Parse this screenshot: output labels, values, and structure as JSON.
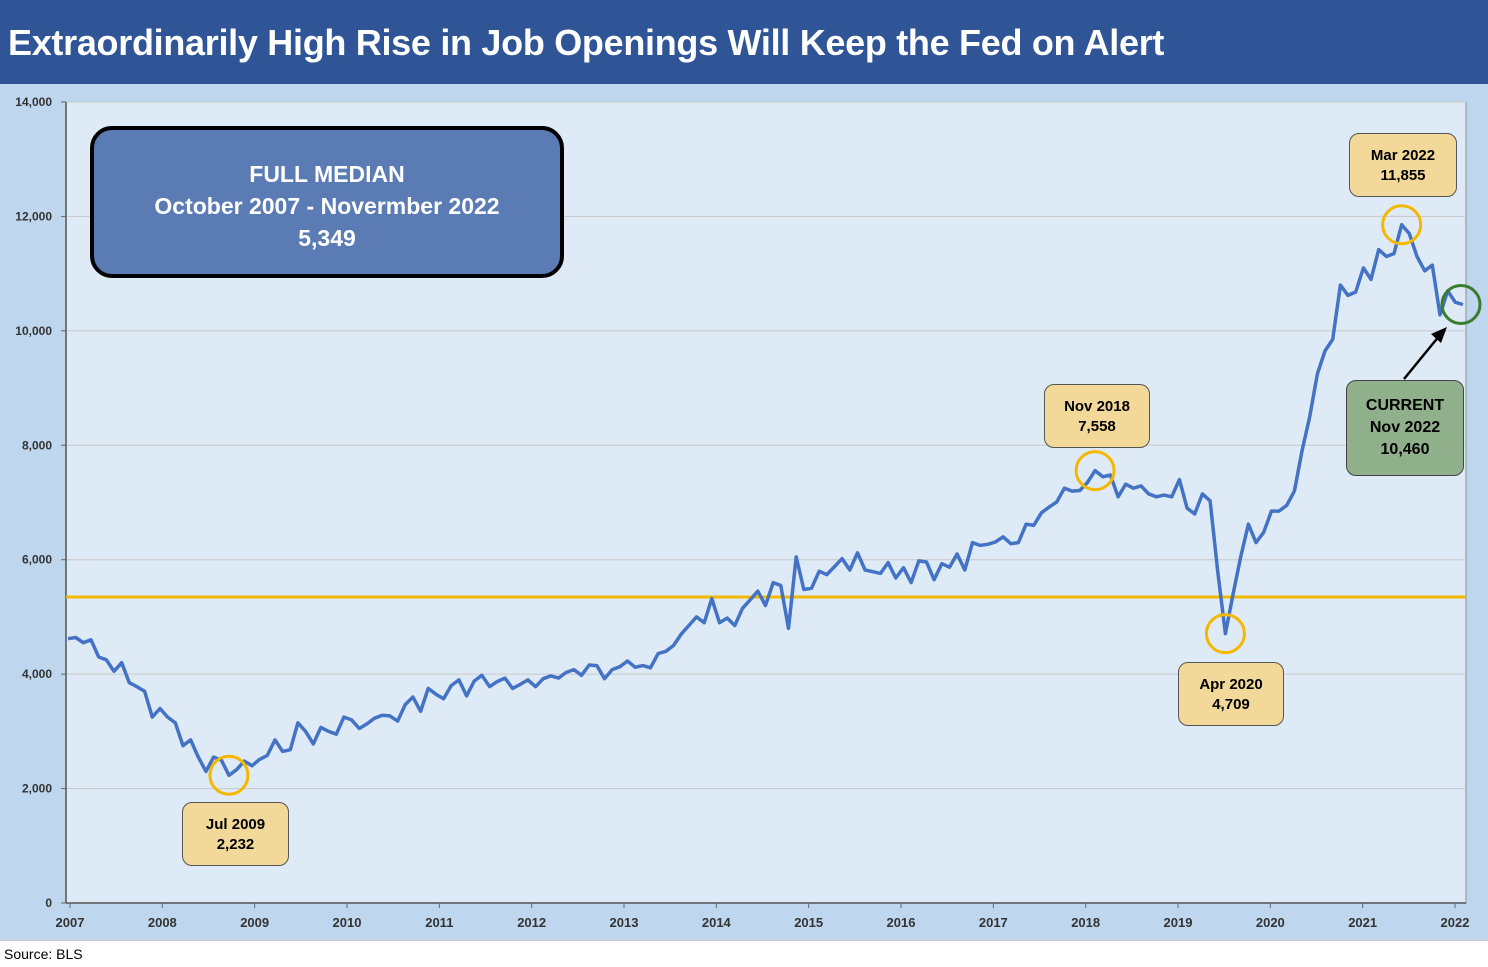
{
  "title": "Extraordinarily High Rise in Job Openings Will Keep the Fed on Alert",
  "source": "Source: BLS",
  "median_box": {
    "line1": "FULL MEDIAN",
    "line2": "October 2007 - Novermber 2022",
    "line3": "5,349"
  },
  "callouts": {
    "jul2009": {
      "label": "Jul 2009",
      "value": "2,232"
    },
    "nov2018": {
      "label": "Nov 2018",
      "value": "7,558"
    },
    "apr2020": {
      "label": "Apr 2020",
      "value": "4,709"
    },
    "mar2022": {
      "label": "Mar 2022",
      "value": "11,855"
    },
    "current": {
      "label": "CURRENT",
      "sublabel": "Nov 2022",
      "value": "10,460"
    }
  },
  "colors": {
    "title_bar": "#2f5597",
    "outer_bg": "#bfd7ee",
    "plot_bg": "#deebf7",
    "line": "#4472c4",
    "median_line": "#f5b800",
    "highlight_circle": "#f5b800",
    "current_circle": "#3a7d2e"
  },
  "chart_data": {
    "type": "line",
    "title": "Extraordinarily High Rise in Job Openings Will Keep the Fed on Alert",
    "xlabel": "",
    "ylabel": "",
    "ylim": [
      0,
      14000
    ],
    "yticks": [
      0,
      2000,
      4000,
      6000,
      8000,
      10000,
      12000,
      14000
    ],
    "ytick_labels": [
      "0",
      "2,000",
      "4,000",
      "6,000",
      "8,000",
      "10,000",
      "12,000",
      "14,000"
    ],
    "xticks": [
      "2007",
      "2008",
      "2009",
      "2010",
      "2011",
      "2012",
      "2013",
      "2014",
      "2015",
      "2016",
      "2017",
      "2018",
      "2019",
      "2020",
      "2021",
      "2022"
    ],
    "median": 5349,
    "grid": true,
    "legend": "none",
    "series": [
      {
        "values": [
          4620,
          4640,
          4550,
          4600,
          4300,
          4250,
          4050,
          4200,
          3850,
          3780,
          3700,
          3250,
          3400,
          3250,
          3150,
          2750,
          2850,
          2550,
          2300,
          2550,
          2500,
          2232,
          2330,
          2480,
          2400,
          2510,
          2580,
          2850,
          2650,
          2680,
          3150,
          3000,
          2780,
          3070,
          3000,
          2950,
          3250,
          3200,
          3050,
          3130,
          3230,
          3280,
          3270,
          3180,
          3470,
          3600,
          3350,
          3750,
          3650,
          3570,
          3800,
          3900,
          3620,
          3880,
          3980,
          3780,
          3870,
          3930,
          3750,
          3820,
          3900,
          3780,
          3920,
          3970,
          3930,
          4030,
          4080,
          3980,
          4160,
          4150,
          3920,
          4080,
          4130,
          4230,
          4120,
          4150,
          4110,
          4360,
          4400,
          4500,
          4700,
          4850,
          5000,
          4900,
          5320,
          4900,
          4980,
          4850,
          5150,
          5300,
          5450,
          5200,
          5600,
          5550,
          4800,
          6050,
          5480,
          5500,
          5800,
          5740,
          5880,
          6020,
          5820,
          6120,
          5820,
          5790,
          5760,
          5950,
          5680,
          5860,
          5600,
          5980,
          5960,
          5650,
          5930,
          5870,
          6100,
          5820,
          6300,
          6250,
          6270,
          6310,
          6400,
          6280,
          6300,
          6620,
          6600,
          6820,
          6920,
          7010,
          7250,
          7200,
          7210,
          7350,
          7558,
          7450,
          7480,
          7100,
          7320,
          7250,
          7290,
          7150,
          7100,
          7130,
          7100,
          7400,
          6900,
          6800,
          7150,
          7030,
          5800,
          4709,
          5400,
          6050,
          6620,
          6300,
          6480,
          6850,
          6850,
          6950,
          7200,
          7900,
          8500,
          9250,
          9650,
          9850,
          10800,
          10620,
          10680,
          11100,
          10900,
          11420,
          11300,
          11350,
          11855,
          11700,
          11300,
          11050,
          11150,
          10280,
          10700,
          10500,
          10460
        ]
      }
    ],
    "annotations": [
      {
        "label": "Jul 2009",
        "value": 2232
      },
      {
        "label": "Nov 2018",
        "value": 7558
      },
      {
        "label": "Apr 2020",
        "value": 4709
      },
      {
        "label": "Mar 2022",
        "value": 11855
      },
      {
        "label": "CURRENT Nov 2022",
        "value": 10460
      }
    ]
  }
}
